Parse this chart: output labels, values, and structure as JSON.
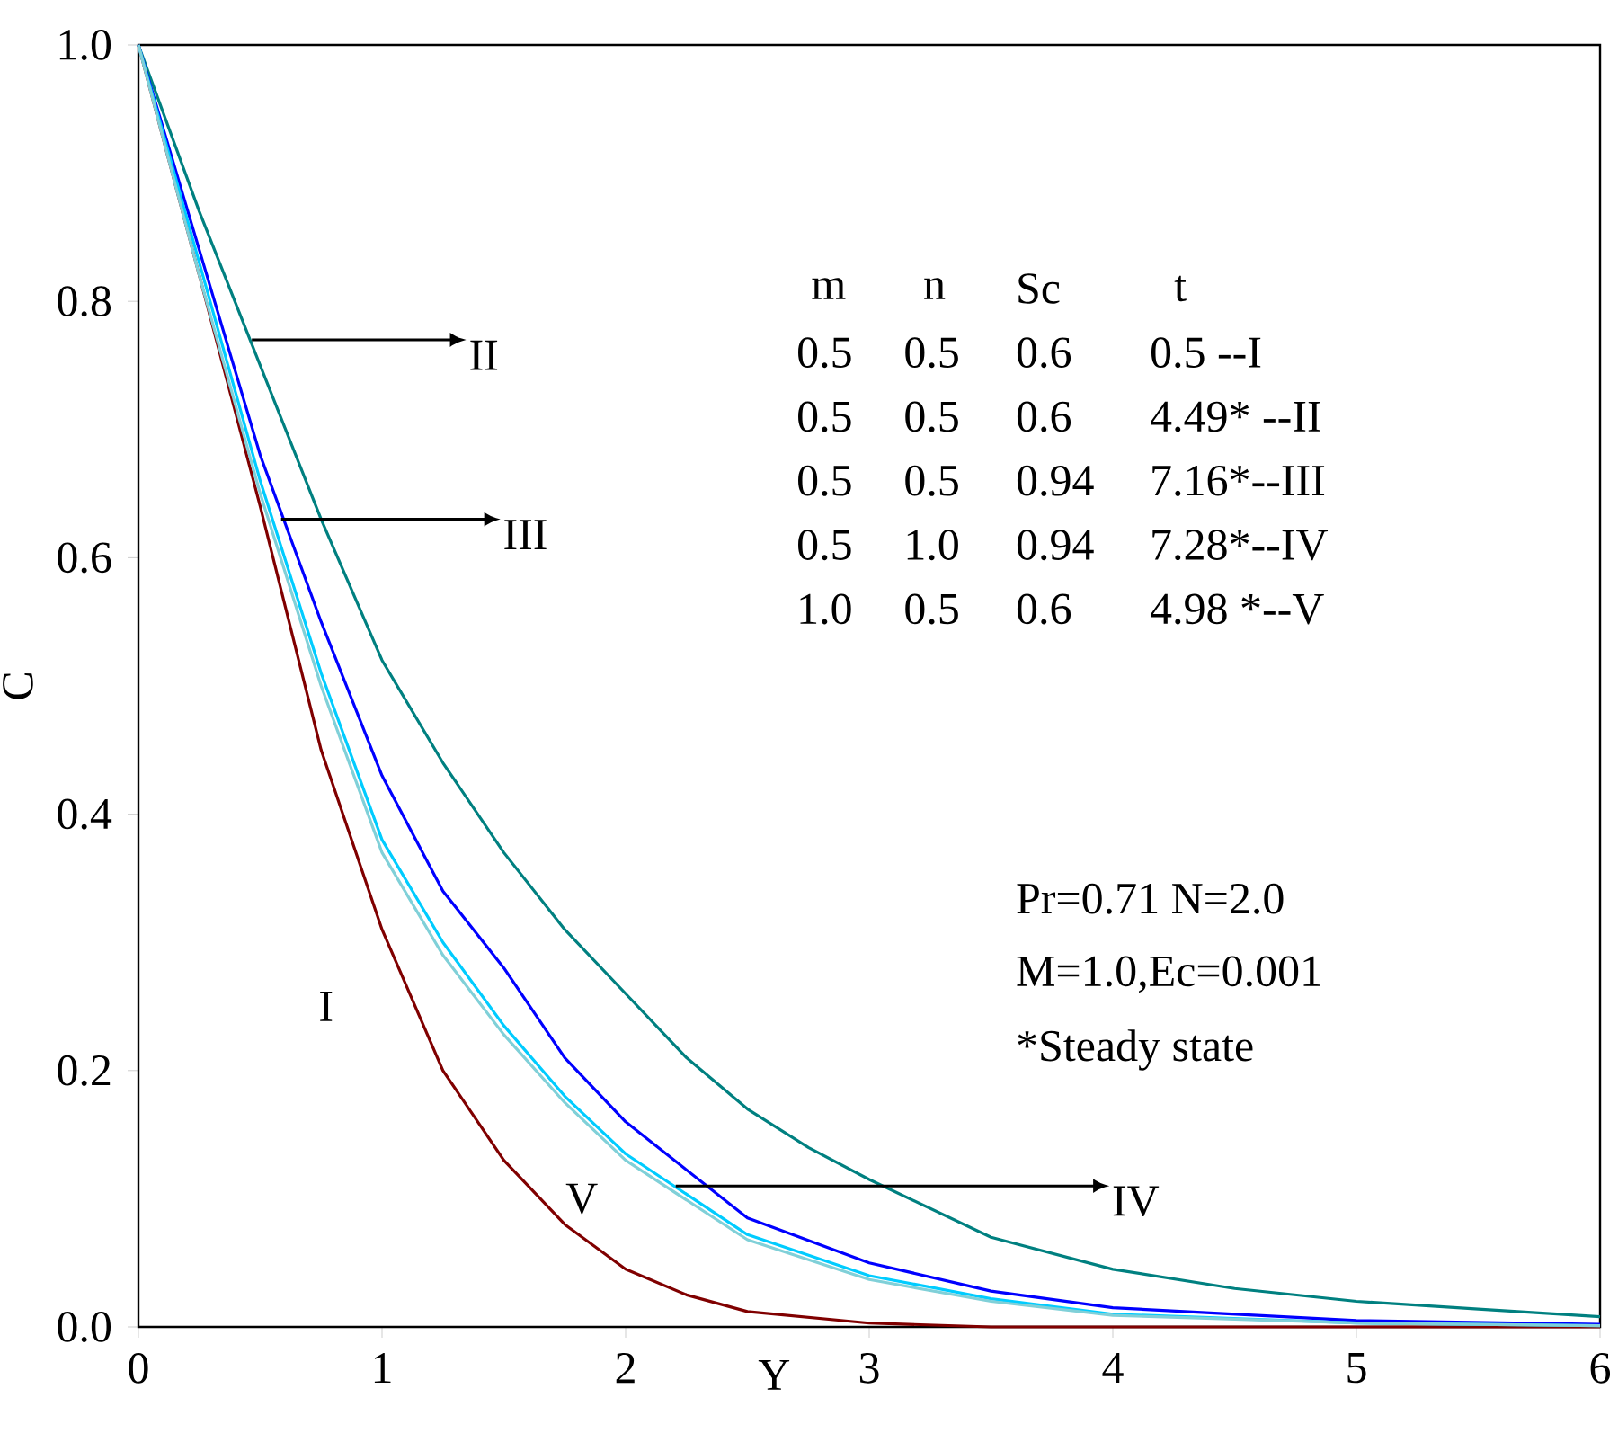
{
  "chart_data": {
    "type": "line",
    "xlabel": "Y",
    "ylabel": "C",
    "xlim": [
      0,
      6
    ],
    "ylim": [
      0,
      1
    ],
    "xticks": [
      0,
      1,
      2,
      3,
      4,
      5,
      6
    ],
    "yticks": [
      {
        "value": 0,
        "label": "0.0"
      },
      {
        "value": 0.2,
        "label": "0.2"
      },
      {
        "value": 0.4,
        "label": "0.4"
      },
      {
        "value": 0.6,
        "label": "0.6"
      },
      {
        "value": 0.8,
        "label": "0.8"
      },
      {
        "value": 1,
        "label": "1.0"
      }
    ],
    "marker": "none",
    "line_style": "solid",
    "series": [
      {
        "color": "#800000",
        "x": [
          0,
          0.25,
          0.5,
          0.75,
          1,
          1.25,
          1.5,
          1.75,
          2,
          2.25,
          2.5,
          3,
          3.5,
          4,
          5,
          6
        ],
        "values": [
          1,
          0.82,
          0.64,
          0.45,
          0.31,
          0.2,
          0.13,
          0.08,
          0.045,
          0.025,
          0.012,
          0.003,
          0,
          0,
          0,
          0
        ]
      },
      {
        "color": "#008080",
        "x": [
          0,
          0.25,
          0.5,
          0.75,
          1,
          1.25,
          1.5,
          1.75,
          2,
          2.25,
          2.5,
          2.75,
          3,
          3.5,
          4,
          4.5,
          5,
          5.5,
          6
        ],
        "values": [
          1,
          0.87,
          0.75,
          0.63,
          0.52,
          0.44,
          0.37,
          0.31,
          0.26,
          0.21,
          0.17,
          0.14,
          0.115,
          0.07,
          0.045,
          0.03,
          0.02,
          0.014,
          0.008
        ]
      },
      {
        "color": "#0000ff",
        "x": [
          0,
          0.25,
          0.5,
          0.75,
          1,
          1.25,
          1.5,
          1.75,
          2,
          2.5,
          3,
          3.5,
          4,
          5,
          6
        ],
        "values": [
          1,
          0.84,
          0.68,
          0.55,
          0.43,
          0.34,
          0.28,
          0.21,
          0.16,
          0.085,
          0.05,
          0.028,
          0.015,
          0.005,
          0.002
        ]
      },
      {
        "color": "#00ccff",
        "x": [
          0,
          0.25,
          0.5,
          0.75,
          1,
          1.25,
          1.5,
          1.75,
          2,
          2.5,
          3,
          3.5,
          4,
          5,
          6
        ],
        "values": [
          1,
          0.83,
          0.66,
          0.51,
          0.38,
          0.3,
          0.235,
          0.18,
          0.135,
          0.072,
          0.04,
          0.022,
          0.01,
          0.003,
          0.001
        ]
      },
      {
        "color": "#80d0d8",
        "x": [
          0,
          0.25,
          0.5,
          0.75,
          1,
          1.25,
          1.5,
          1.75,
          2,
          2.5,
          3,
          3.5,
          4,
          5,
          6
        ],
        "values": [
          1,
          0.82,
          0.65,
          0.5,
          0.37,
          0.29,
          0.228,
          0.175,
          0.13,
          0.068,
          0.037,
          0.02,
          0.009,
          0.003,
          0.001
        ]
      }
    ],
    "annotations": [
      "m",
      "n",
      "Sc",
      "t",
      "0.5",
      "0.5",
      "0.6",
      "0.5    --I",
      "0.5",
      "0.5",
      "0.6",
      "4.49* --II",
      "0.5",
      "0.5",
      "0.94",
      "7.16*--III",
      "0.5",
      "1.0",
      "0.94",
      "7.28*--IV",
      "1.0",
      "0.5",
      "0.6",
      "4.98 *--V",
      "Pr=0.71  N=2.0",
      "M=1.0,Ec=0.001",
      "*Steady state",
      "I",
      "V",
      {
        "text": "II",
        "x": 0.46,
        "y": 0.77
      },
      {
        "text": "III",
        "x": 0.58,
        "y": 0.63
      },
      {
        "text": "IV",
        "x": 2.2,
        "y": 0.11
      }
    ]
  }
}
